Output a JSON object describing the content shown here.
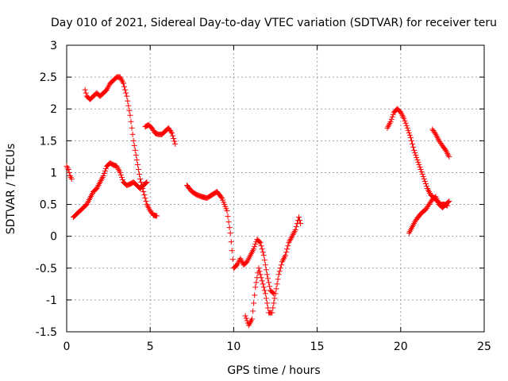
{
  "chart_data": {
    "type": "scatter",
    "title": "Day 010 of 2021, Sidereal Day-to-day VTEC variation (SDTVAR) for receiver teru",
    "xlabel": "GPS time / hours",
    "ylabel": "SDTVAR / TECUs",
    "xlim": [
      0,
      25
    ],
    "ylim": [
      -1.5,
      3
    ],
    "x_ticks": [
      "0",
      "5",
      "10",
      "15",
      "20",
      "25"
    ],
    "y_ticks": [
      "-1.5",
      "-1",
      "-0.5",
      "0",
      "0.5",
      "1",
      "1.5",
      "2",
      "2.5",
      "3"
    ],
    "grid": true,
    "marker": "+",
    "marker_color": "#ff0000",
    "series": [
      {
        "segments": [
          [
            [
              0.0,
              1.1
            ],
            [
              0.1,
              1.05
            ],
            [
              0.2,
              0.95
            ],
            [
              0.3,
              0.9
            ]
          ],
          [
            [
              1.1,
              2.3
            ],
            [
              1.2,
              2.2
            ],
            [
              1.4,
              2.15
            ],
            [
              1.6,
              2.2
            ],
            [
              1.8,
              2.25
            ],
            [
              2.0,
              2.2
            ],
            [
              2.2,
              2.25
            ],
            [
              2.4,
              2.3
            ],
            [
              2.6,
              2.4
            ],
            [
              2.8,
              2.45
            ],
            [
              3.0,
              2.5
            ],
            [
              3.2,
              2.5
            ],
            [
              3.4,
              2.4
            ],
            [
              3.6,
              2.2
            ],
            [
              3.8,
              1.9
            ],
            [
              4.0,
              1.5
            ],
            [
              4.2,
              1.2
            ],
            [
              4.4,
              0.9
            ],
            [
              4.6,
              0.7
            ],
            [
              4.8,
              0.5
            ],
            [
              5.0,
              0.4
            ],
            [
              5.2,
              0.33
            ],
            [
              5.4,
              0.32
            ]
          ],
          [
            [
              0.4,
              0.3
            ],
            [
              0.6,
              0.35
            ],
            [
              0.8,
              0.4
            ],
            [
              1.0,
              0.45
            ],
            [
              1.2,
              0.5
            ],
            [
              1.4,
              0.6
            ],
            [
              1.6,
              0.7
            ],
            [
              1.8,
              0.75
            ],
            [
              2.0,
              0.85
            ],
            [
              2.2,
              0.95
            ],
            [
              2.4,
              1.1
            ],
            [
              2.6,
              1.15
            ],
            [
              2.8,
              1.12
            ],
            [
              3.0,
              1.1
            ],
            [
              3.2,
              1.0
            ],
            [
              3.4,
              0.85
            ],
            [
              3.6,
              0.8
            ],
            [
              3.8,
              0.82
            ],
            [
              4.0,
              0.85
            ],
            [
              4.2,
              0.8
            ],
            [
              4.4,
              0.75
            ],
            [
              4.6,
              0.8
            ],
            [
              4.8,
              0.85
            ]
          ],
          [
            [
              4.7,
              1.72
            ],
            [
              4.9,
              1.75
            ],
            [
              5.1,
              1.7
            ],
            [
              5.3,
              1.62
            ],
            [
              5.5,
              1.6
            ],
            [
              5.7,
              1.6
            ],
            [
              5.9,
              1.65
            ],
            [
              6.1,
              1.7
            ],
            [
              6.3,
              1.62
            ],
            [
              6.5,
              1.45
            ]
          ],
          [
            [
              7.2,
              0.8
            ],
            [
              7.5,
              0.7
            ],
            [
              7.8,
              0.65
            ],
            [
              8.1,
              0.62
            ],
            [
              8.4,
              0.6
            ],
            [
              8.7,
              0.65
            ],
            [
              9.0,
              0.7
            ],
            [
              9.3,
              0.6
            ],
            [
              9.6,
              0.4
            ],
            [
              9.8,
              0.05
            ],
            [
              10.0,
              -0.5
            ],
            [
              10.2,
              -0.45
            ],
            [
              10.4,
              -0.35
            ],
            [
              10.6,
              -0.45
            ],
            [
              10.8,
              -0.4
            ],
            [
              11.0,
              -0.3
            ],
            [
              11.2,
              -0.2
            ],
            [
              11.4,
              -0.05
            ],
            [
              11.6,
              -0.1
            ],
            [
              11.8,
              -0.3
            ],
            [
              12.0,
              -0.6
            ],
            [
              12.2,
              -0.85
            ],
            [
              12.4,
              -0.9
            ]
          ],
          [
            [
              10.7,
              -1.25
            ],
            [
              10.9,
              -1.4
            ],
            [
              11.1,
              -1.3
            ],
            [
              11.3,
              -0.8
            ],
            [
              11.5,
              -0.5
            ],
            [
              11.7,
              -0.7
            ],
            [
              11.9,
              -0.9
            ],
            [
              12.1,
              -1.2
            ],
            [
              12.3,
              -1.2
            ],
            [
              12.5,
              -0.9
            ],
            [
              12.7,
              -0.6
            ],
            [
              12.9,
              -0.4
            ],
            [
              13.1,
              -0.3
            ],
            [
              13.3,
              -0.1
            ],
            [
              13.5,
              0.0
            ],
            [
              13.7,
              0.1
            ],
            [
              13.9,
              0.3
            ],
            [
              14.0,
              0.2
            ]
          ],
          [
            [
              19.2,
              1.7
            ],
            [
              19.4,
              1.8
            ],
            [
              19.6,
              1.95
            ],
            [
              19.8,
              2.0
            ],
            [
              20.0,
              1.95
            ],
            [
              20.2,
              1.85
            ],
            [
              20.4,
              1.7
            ],
            [
              20.6,
              1.55
            ],
            [
              20.8,
              1.35
            ],
            [
              21.0,
              1.2
            ],
            [
              21.2,
              1.05
            ],
            [
              21.4,
              0.9
            ],
            [
              21.6,
              0.75
            ],
            [
              21.8,
              0.65
            ],
            [
              22.0,
              0.6
            ],
            [
              22.2,
              0.55
            ],
            [
              22.4,
              0.5
            ],
            [
              22.6,
              0.5
            ],
            [
              22.8,
              0.48
            ]
          ],
          [
            [
              20.5,
              0.05
            ],
            [
              20.7,
              0.15
            ],
            [
              20.9,
              0.25
            ],
            [
              21.1,
              0.32
            ],
            [
              21.3,
              0.38
            ],
            [
              21.5,
              0.42
            ],
            [
              21.7,
              0.5
            ],
            [
              21.9,
              0.58
            ],
            [
              22.1,
              0.62
            ],
            [
              22.3,
              0.5
            ],
            [
              22.5,
              0.45
            ],
            [
              22.7,
              0.5
            ],
            [
              22.9,
              0.55
            ]
          ],
          [
            [
              21.9,
              1.68
            ],
            [
              22.1,
              1.6
            ],
            [
              22.3,
              1.5
            ],
            [
              22.5,
              1.42
            ],
            [
              22.7,
              1.35
            ],
            [
              22.9,
              1.25
            ]
          ]
        ]
      }
    ]
  }
}
